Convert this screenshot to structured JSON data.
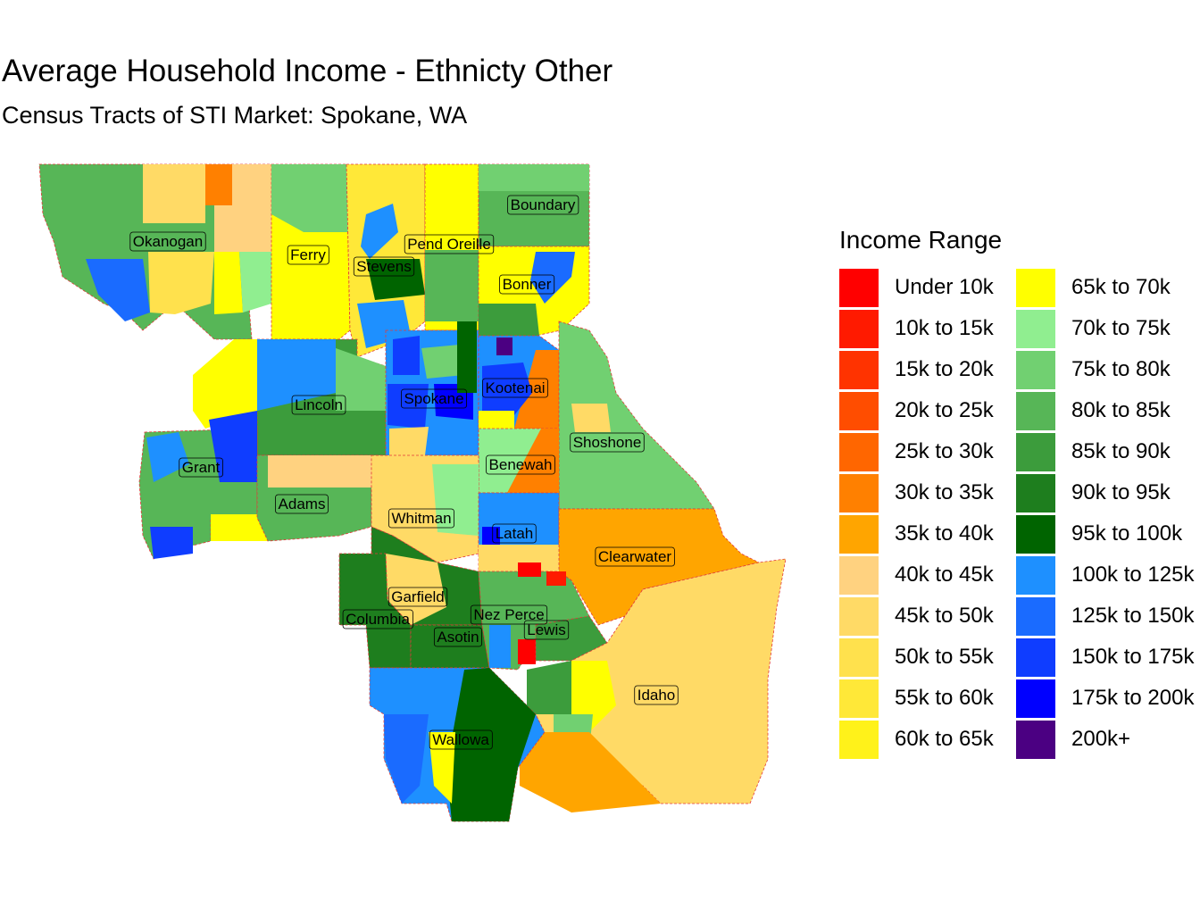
{
  "title": "Average Household Income - Ethnicty Other",
  "subtitle": "Census Tracts of STI Market: Spokane, WA",
  "legend": {
    "title": "Income Range",
    "items": [
      {
        "label": "Under 10k",
        "color": "#FF0000"
      },
      {
        "label": "10k to 15k",
        "color": "#FF1A00"
      },
      {
        "label": "15k to 20k",
        "color": "#FF3300"
      },
      {
        "label": "20k to 25k",
        "color": "#FF4D00"
      },
      {
        "label": "25k to 30k",
        "color": "#FF6600"
      },
      {
        "label": "30k to 35k",
        "color": "#FF8000"
      },
      {
        "label": "35k to 40k",
        "color": "#FFA500"
      },
      {
        "label": "40k to 45k",
        "color": "#FFD280"
      },
      {
        "label": "45k to 50k",
        "color": "#FFDA66"
      },
      {
        "label": "50k to 55k",
        "color": "#FFE14D"
      },
      {
        "label": "55k to 60k",
        "color": "#FFE838"
      },
      {
        "label": "60k to 65k",
        "color": "#FFF21A"
      },
      {
        "label": "65k to 70k",
        "color": "#FFFF00"
      },
      {
        "label": "70k to 75k",
        "color": "#90EE90"
      },
      {
        "label": "75k to 80k",
        "color": "#71D071"
      },
      {
        "label": "80k to 85k",
        "color": "#57B657"
      },
      {
        "label": "85k to 90k",
        "color": "#3C9C3C"
      },
      {
        "label": "90k to 95k",
        "color": "#1E7E1E"
      },
      {
        "label": "95k to 100k",
        "color": "#006400"
      },
      {
        "label": "100k to 125k",
        "color": "#1E90FF"
      },
      {
        "label": "125k to 150k",
        "color": "#1A6BFF"
      },
      {
        "label": "150k to 175k",
        "color": "#0F3DFF"
      },
      {
        "label": "175k to 200k",
        "color": "#0000FF"
      },
      {
        "label": "200k+",
        "color": "#4B0082"
      }
    ]
  },
  "counties": [
    {
      "name": "Okanogan",
      "color": "#57B657"
    },
    {
      "name": "Ferry",
      "color": "#FFFF00"
    },
    {
      "name": "Stevens",
      "color": "#FFF21A"
    },
    {
      "name": "Pend Oreille",
      "color": "#FFFF00"
    },
    {
      "name": "Boundary",
      "color": "#57B657"
    },
    {
      "name": "Bonner",
      "color": "#FFFF00"
    },
    {
      "name": "Lincoln",
      "color": "#3C9C3C"
    },
    {
      "name": "Spokane",
      "color": "#1E90FF"
    },
    {
      "name": "Kootenai",
      "color": "#FF8000"
    },
    {
      "name": "Shoshone",
      "color": "#71D071"
    },
    {
      "name": "Grant",
      "color": "#FFFF00"
    },
    {
      "name": "Benewah",
      "color": "#90EE90"
    },
    {
      "name": "Adams",
      "color": "#57B657"
    },
    {
      "name": "Whitman",
      "color": "#FFDA66"
    },
    {
      "name": "Latah",
      "color": "#1E90FF"
    },
    {
      "name": "Clearwater",
      "color": "#FFA500"
    },
    {
      "name": "Garfield",
      "color": "#1E7E1E"
    },
    {
      "name": "Columbia",
      "color": "#1E7E1E"
    },
    {
      "name": "Nez Perce",
      "color": "#57B657"
    },
    {
      "name": "Lewis",
      "color": "#3C9C3C"
    },
    {
      "name": "Asotin",
      "color": "#1E7E1E"
    },
    {
      "name": "Idaho",
      "color": "#FFDA66"
    },
    {
      "name": "Wallowa",
      "color": "#006400"
    }
  ]
}
